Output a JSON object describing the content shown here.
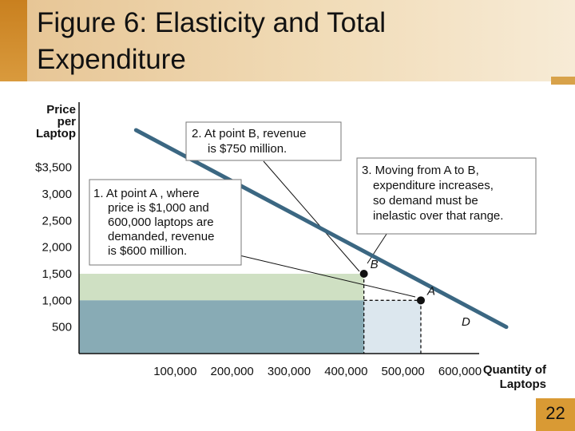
{
  "slide": {
    "title_line1": "Figure 6:  Elasticity and Total",
    "title_line2": "Expenditure",
    "slide_number": "22",
    "colors": {
      "header_gradient_start": "#e7c696",
      "header_accent": "#c9801f",
      "slide_number_box": "#d99a34",
      "demand_line": "#3b6782",
      "area_a": "#88abb5",
      "area_b_extra": "#cfe0c3",
      "area_a_extra": "#dce7ee"
    }
  },
  "chart_data": {
    "type": "line",
    "ylabel_lines": [
      "Price",
      "per",
      "Laptop"
    ],
    "xlabel_lines": [
      "Quantity of",
      "Laptops"
    ],
    "y_ticks": [
      {
        "value": 3500,
        "label": "$3,500"
      },
      {
        "value": 3000,
        "label": "3,000"
      },
      {
        "value": 2500,
        "label": "2,500"
      },
      {
        "value": 2000,
        "label": "2,000"
      },
      {
        "value": 1500,
        "label": "1,500"
      },
      {
        "value": 1000,
        "label": "1,000"
      },
      {
        "value": 500,
        "label": "500"
      }
    ],
    "x_ticks": [
      {
        "value": 100000,
        "label": "100,000"
      },
      {
        "value": 200000,
        "label": "200,000"
      },
      {
        "value": 300000,
        "label": "300,000"
      },
      {
        "value": 400000,
        "label": "400,000"
      },
      {
        "value": 500000,
        "label": "500,000"
      },
      {
        "value": 600000,
        "label": "600,000"
      }
    ],
    "demand_curve": {
      "name": "D",
      "points": [
        [
          100000,
          4200
        ],
        [
          750000,
          500
        ]
      ]
    },
    "points": [
      {
        "name": "B",
        "quantity": 500000,
        "price": 1500
      },
      {
        "name": "A",
        "quantity": 600000,
        "price": 1000
      }
    ],
    "revenue_rectangles": [
      {
        "name": "revenue-at-a",
        "quantity": 600000,
        "price": 1000
      },
      {
        "name": "revenue-at-b",
        "quantity": 500000,
        "price": 1500
      }
    ],
    "annotations": [
      {
        "id": "note_b",
        "lines": [
          "2. At point B, revenue",
          "is $750 million."
        ]
      },
      {
        "id": "note_a",
        "lines": [
          "1. At point A , where",
          "price is $1,000 and",
          "600,000 laptops are",
          "demanded, revenue",
          "is $600 million."
        ]
      },
      {
        "id": "note_move",
        "lines": [
          "3. Moving from A to B,",
          "expenditure increases,",
          "so demand must be",
          "inelastic over that range."
        ]
      }
    ]
  }
}
